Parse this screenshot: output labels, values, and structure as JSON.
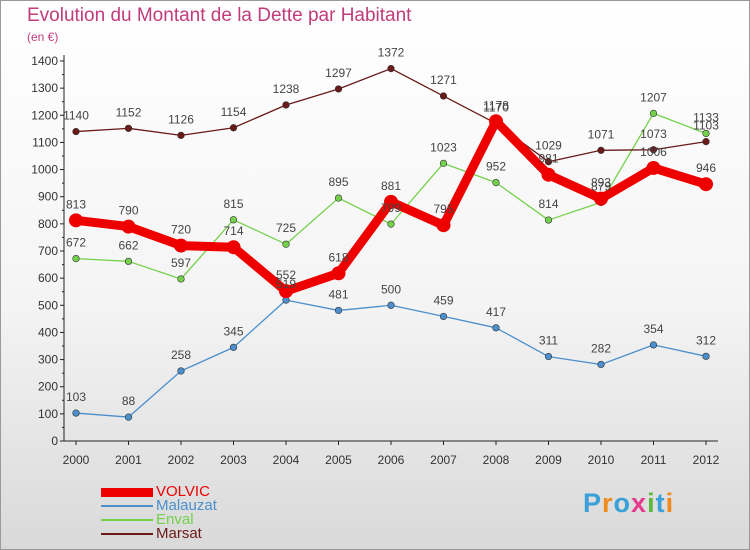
{
  "title": "Evolution du Montant de la Dette par Habitant",
  "subtitle": "(en €)",
  "logo": {
    "text": "Proxiti",
    "colors": [
      "#3aa0d8",
      "#f08a1c",
      "#3aa0d8",
      "#e43a8f",
      "#5ab93a",
      "#3aa0d8",
      "#f08a1c"
    ]
  },
  "chart_data": {
    "type": "line",
    "title": "Evolution du Montant de la Dette par Habitant",
    "subtitle": "(en €)",
    "x": [
      "2000",
      "2001",
      "2002",
      "2003",
      "2004",
      "2005",
      "2006",
      "2007",
      "2008",
      "2009",
      "2010",
      "2011",
      "2012"
    ],
    "ylim": [
      0,
      1400
    ],
    "yticks": [
      0,
      100,
      200,
      300,
      400,
      500,
      600,
      700,
      800,
      900,
      1000,
      1100,
      1200,
      1300,
      1400
    ],
    "grid": false,
    "legend_position": "bottom-left",
    "series": [
      {
        "name": "VOLVIC",
        "color": "#ee0000",
        "emphasis": true,
        "values": [
          813,
          790,
          720,
          714,
          552,
          618,
          881,
          795,
          1178,
          981,
          893,
          1006,
          946
        ]
      },
      {
        "name": "Malauzat",
        "color": "#4b8fcc",
        "values": [
          103,
          88,
          258,
          345,
          519,
          481,
          500,
          459,
          417,
          311,
          282,
          354,
          312
        ]
      },
      {
        "name": "Enval",
        "color": "#74d14c",
        "values": [
          672,
          662,
          597,
          815,
          725,
          895,
          799,
          1023,
          952,
          814,
          879,
          1207,
          1133
        ]
      },
      {
        "name": "Marsat",
        "color": "#6b1a1a",
        "values": [
          1140,
          1152,
          1126,
          1154,
          1238,
          1297,
          1372,
          1271,
          1170,
          1029,
          1071,
          1073,
          1103
        ]
      }
    ]
  }
}
